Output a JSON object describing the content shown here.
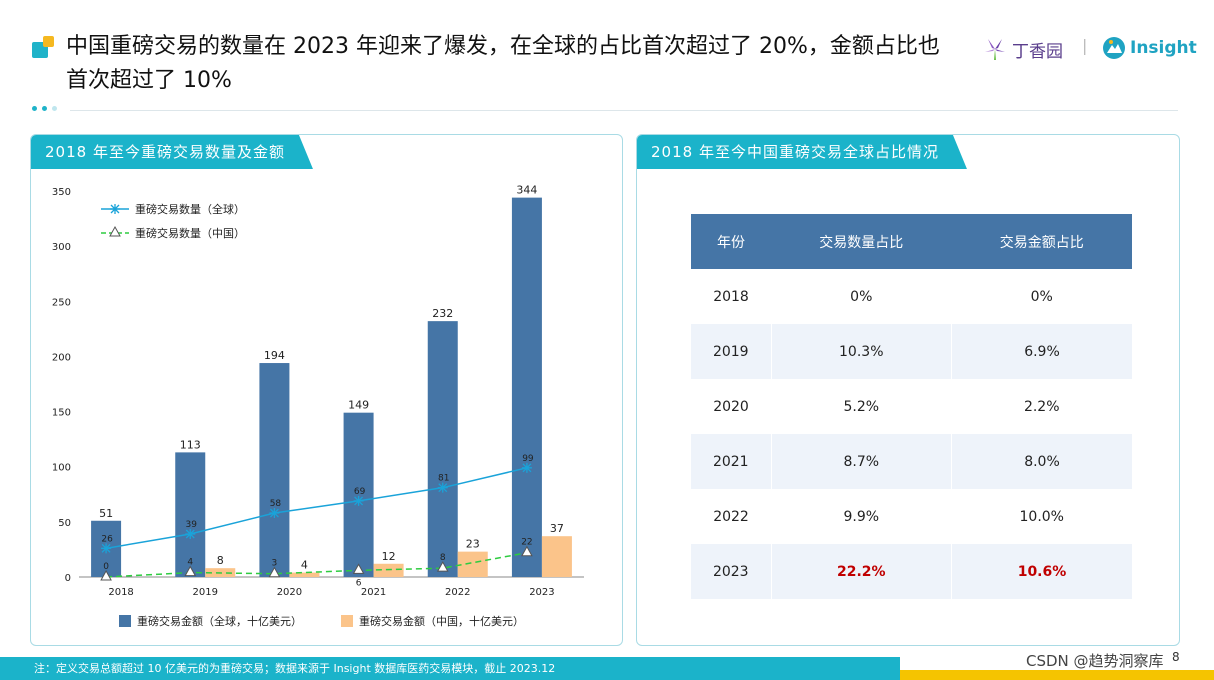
{
  "title": "中国重磅交易的数量在 2023 年迎来了爆发，在全球的占比首次超过了 20%，金额占比也首次超过了 10%",
  "brand_left": "丁香园",
  "brand_sep": "|",
  "brand_right": "Insight",
  "left_panel_title": "2018 年至今重磅交易数量及金额",
  "right_panel_title": "2018 年至今中国重磅交易全球占比情况",
  "colors": {
    "accent": "#1bb3ca",
    "bar_global": "#4575a6",
    "bar_china": "#fbc48a",
    "line_global": "#1aa3d9",
    "line_china": "#2ecc40",
    "highlight": "#c00000"
  },
  "chart_data": {
    "type": "bar",
    "categories": [
      "2018",
      "2019",
      "2020",
      "2021",
      "2022",
      "2023"
    ],
    "ylim": [
      0,
      350
    ],
    "yticks": [
      0,
      50,
      100,
      150,
      200,
      250,
      300,
      350
    ],
    "series": [
      {
        "name": "重磅交易金额（全球，十亿美元）",
        "kind": "bar",
        "values": [
          51,
          113,
          194,
          149,
          232,
          344
        ]
      },
      {
        "name": "重磅交易金额（中国，十亿美元）",
        "kind": "bar",
        "values": [
          0,
          8,
          4,
          12,
          23,
          37
        ]
      },
      {
        "name": "重磅交易数量（全球）",
        "kind": "line",
        "values": [
          26,
          39,
          58,
          69,
          81,
          99
        ]
      },
      {
        "name": "重磅交易数量（中国）",
        "kind": "line",
        "values": [
          0,
          4,
          3,
          6,
          8,
          22
        ]
      }
    ],
    "bar_labels_china": [
      "",
      "8",
      "4",
      "12",
      "23",
      "37"
    ],
    "legend_lines": [
      "重磅交易数量（全球）",
      "重磅交易数量（中国）"
    ],
    "legend_bars": [
      "重磅交易金额（全球，十亿美元）",
      "重磅交易金额（中国，十亿美元）"
    ]
  },
  "table": {
    "headers": [
      "年份",
      "交易数量占比",
      "交易金额占比"
    ],
    "rows": [
      [
        "2018",
        "0%",
        "0%"
      ],
      [
        "2019",
        "10.3%",
        "6.9%"
      ],
      [
        "2020",
        "5.2%",
        "2.2%"
      ],
      [
        "2021",
        "8.7%",
        "8.0%"
      ],
      [
        "2022",
        "9.9%",
        "10.0%"
      ],
      [
        "2023",
        "22.2%",
        "10.6%"
      ]
    ]
  },
  "footer_note": "注：定义交易总额超过 10 亿美元的为重磅交易；数据来源于 Insight 数据库医药交易模块，截止 2023.12",
  "page_number": "8",
  "csdn_watermark": "CSDN @趋势洞察库"
}
